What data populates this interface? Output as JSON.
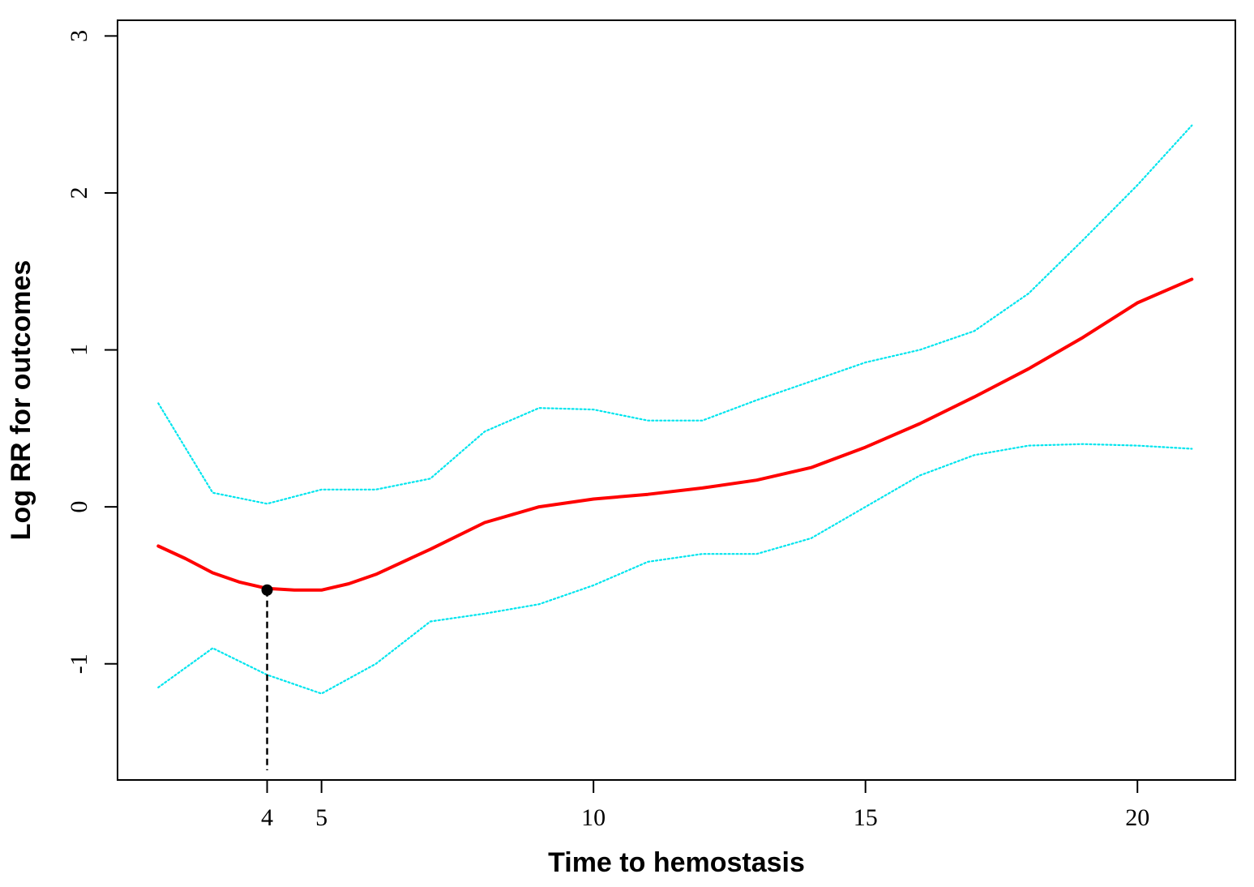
{
  "chart_data": {
    "type": "line",
    "xlabel": "Time to hemostasis",
    "ylabel": "Log RR for outcomes",
    "xlim": [
      1.25,
      21.8
    ],
    "ylim": [
      -1.74,
      3.1
    ],
    "x_ticks": [
      4,
      5,
      10,
      15,
      20
    ],
    "x_tick_labels": [
      "4",
      "5",
      "10",
      "15",
      "20"
    ],
    "y_ticks": [
      -1,
      0,
      1,
      2,
      3
    ],
    "y_tick_labels": [
      "-1",
      "0",
      "1",
      "2",
      "3"
    ],
    "grid": false,
    "legend": "none",
    "series": [
      {
        "role": "estimate",
        "color": "#ff0000",
        "style": "solid",
        "points": [
          [
            2,
            -0.25
          ],
          [
            2.5,
            -0.33
          ],
          [
            3,
            -0.42
          ],
          [
            3.5,
            -0.48
          ],
          [
            4,
            -0.52
          ],
          [
            4.5,
            -0.53
          ],
          [
            5,
            -0.53
          ],
          [
            5.5,
            -0.49
          ],
          [
            6,
            -0.43
          ],
          [
            7,
            -0.27
          ],
          [
            8,
            -0.1
          ],
          [
            9,
            0.0
          ],
          [
            10,
            0.05
          ],
          [
            11,
            0.08
          ],
          [
            12,
            0.12
          ],
          [
            13,
            0.17
          ],
          [
            14,
            0.25
          ],
          [
            15,
            0.38
          ],
          [
            16,
            0.53
          ],
          [
            17,
            0.7
          ],
          [
            18,
            0.88
          ],
          [
            19,
            1.08
          ],
          [
            20,
            1.3
          ],
          [
            21,
            1.45
          ]
        ]
      },
      {
        "role": "upper-ci",
        "color": "#00e5ee",
        "style": "dotted",
        "points": [
          [
            2,
            0.66
          ],
          [
            3,
            0.09
          ],
          [
            4,
            0.02
          ],
          [
            5,
            0.11
          ],
          [
            6,
            0.11
          ],
          [
            7,
            0.18
          ],
          [
            8,
            0.48
          ],
          [
            9,
            0.63
          ],
          [
            10,
            0.62
          ],
          [
            11,
            0.55
          ],
          [
            12,
            0.55
          ],
          [
            13,
            0.68
          ],
          [
            14,
            0.8
          ],
          [
            15,
            0.92
          ],
          [
            16,
            1.0
          ],
          [
            17,
            1.12
          ],
          [
            18,
            1.36
          ],
          [
            19,
            1.7
          ],
          [
            20,
            2.05
          ],
          [
            21,
            2.43
          ]
        ]
      },
      {
        "role": "lower-ci",
        "color": "#00e5ee",
        "style": "dotted",
        "points": [
          [
            2,
            -1.15
          ],
          [
            3,
            -0.9
          ],
          [
            4,
            -1.07
          ],
          [
            5,
            -1.19
          ],
          [
            6,
            -1.0
          ],
          [
            7,
            -0.73
          ],
          [
            8,
            -0.68
          ],
          [
            9,
            -0.62
          ],
          [
            10,
            -0.5
          ],
          [
            11,
            -0.35
          ],
          [
            12,
            -0.3
          ],
          [
            13,
            -0.3
          ],
          [
            14,
            -0.2
          ],
          [
            15,
            0.0
          ],
          [
            16,
            0.2
          ],
          [
            17,
            0.33
          ],
          [
            18,
            0.39
          ],
          [
            19,
            0.4
          ],
          [
            20,
            0.39
          ],
          [
            21,
            0.37
          ]
        ]
      }
    ],
    "marker": {
      "x": 4,
      "y": -0.53,
      "color": "#000000",
      "drop_line": "dashed"
    }
  }
}
